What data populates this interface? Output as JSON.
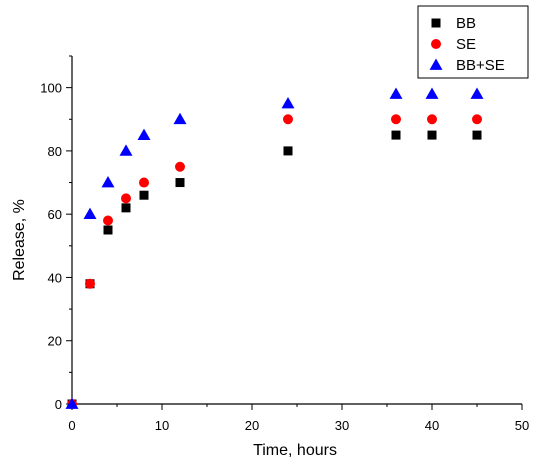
{
  "chart_data": {
    "type": "scatter",
    "xlabel": "Time, hours",
    "ylabel": "Release, %",
    "xlim": [
      0,
      50
    ],
    "ylim": [
      0,
      110
    ],
    "xticks": [
      "0",
      "10",
      "20",
      "30",
      "40",
      "50"
    ],
    "yticks": [
      "0",
      "20",
      "40",
      "60",
      "80",
      "100"
    ],
    "grid": false,
    "legend": "top-right",
    "series": [
      {
        "name": "BB",
        "marker": "square",
        "color": "#000000",
        "x": [
          0,
          2,
          4,
          6,
          8,
          12,
          24,
          36,
          40,
          45
        ],
        "y": [
          0,
          38,
          55,
          62,
          66,
          70,
          80,
          85,
          85,
          85
        ]
      },
      {
        "name": "SE",
        "marker": "circle",
        "color": "#ff0000",
        "x": [
          0,
          2,
          4,
          6,
          8,
          12,
          24,
          36,
          40,
          45
        ],
        "y": [
          0,
          38,
          58,
          65,
          70,
          75,
          90,
          90,
          90,
          90
        ]
      },
      {
        "name": "BB+SE",
        "marker": "triangle",
        "color": "#0000ff",
        "x": [
          0,
          2,
          4,
          6,
          8,
          12,
          24,
          36,
          40,
          45
        ],
        "y": [
          0,
          60,
          70,
          80,
          85,
          90,
          95,
          98,
          98,
          98
        ]
      }
    ]
  }
}
